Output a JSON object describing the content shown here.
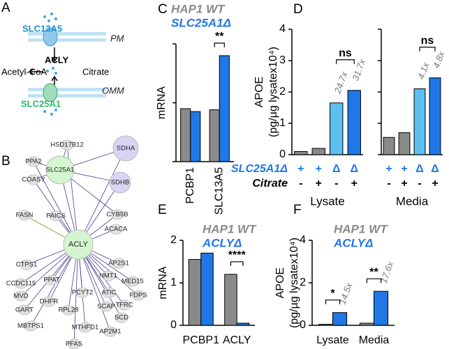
{
  "panel_labels": [
    "A",
    "B",
    "C",
    "D",
    "E",
    "F"
  ],
  "diagram": {
    "labels": [
      "SLC13A5",
      "PM",
      "ACLY",
      "Acetyl-CoA",
      "Citrate",
      "OMM",
      "SLC25A1"
    ]
  },
  "network": {
    "nodes": [
      "ACLY",
      "SLC25A1",
      "SDHA",
      "SDHB",
      "HSD17B12",
      "PPA2",
      "COASY",
      "CYB5B",
      "FASN",
      "PAICS",
      "ACACA",
      "CTPS1",
      "AP2S1",
      "CCDC115",
      "PPAT",
      "NMT1",
      "MED15",
      "MVD",
      "PCYT2",
      "ATIC",
      "TFRC",
      "FDPS",
      "DHFR",
      "SCAP",
      "GART",
      "RPL28",
      "SCD",
      "MBTPS1",
      "MTHFD1",
      "AP2M1",
      "PFAS"
    ]
  },
  "chart_data": [
    {
      "type": "bar",
      "ylabel": [
        "mRNA"
      ],
      "categories": [
        "PCBP1",
        "SLC13A5"
      ],
      "ylim": [
        0,
        2
      ],
      "yticks": [
        0,
        1,
        2
      ],
      "tick_labels": false,
      "series": [
        {
          "name": "HAP1 WT",
          "color": "#8a8a8a",
          "values": [
            0.9,
            0.88
          ]
        },
        {
          "name": "SLC25A1Δ",
          "color": "#1f78e6",
          "values": [
            0.85,
            1.8
          ]
        }
      ],
      "annotations": [
        "**"
      ]
    },
    {
      "type": "grouped_bar",
      "ylabel": [
        "APOE",
        "(pg/µg lysatex10⁴)"
      ],
      "ylim": [
        0,
        4
      ],
      "yticks": [
        0,
        1,
        2,
        3,
        4
      ],
      "bar_colors": [
        "#8a8a8a",
        "#8a8a8a",
        "#5cc0f0",
        "#1f78e6"
      ],
      "groups": [
        {
          "name": "Lysate",
          "values": [
            0.1,
            0.2,
            1.65,
            2.05
          ],
          "fold_labels": [
            null,
            null,
            "24.7x",
            "31.7x"
          ]
        },
        {
          "name": "Media",
          "values": [
            0.55,
            0.7,
            2.1,
            2.45
          ],
          "fold_labels": [
            null,
            null,
            "4.1x",
            "4.8x"
          ]
        }
      ],
      "annotations": [
        "ns",
        "ns"
      ],
      "rows": [
        {
          "name": "SLC25A1Δ",
          "color": "#1f78e6",
          "marks": [
            "+",
            "+",
            "Δ",
            "Δ"
          ]
        },
        {
          "name": "Citrate",
          "color": "#000000",
          "marks": [
            "-",
            "+",
            "-",
            "+"
          ]
        }
      ]
    },
    {
      "type": "bar",
      "ylabel": [
        "mRNA"
      ],
      "categories": [
        "PCBP1",
        "ACLY"
      ],
      "ylim": [
        0,
        2
      ],
      "yticks": [
        0,
        1,
        2
      ],
      "tick_labels": true,
      "series": [
        {
          "name": "HAP1 WT",
          "color": "#8a8a8a",
          "values": [
            1.55,
            1.2
          ]
        },
        {
          "name": "ACLYΔ",
          "color": "#1f78e6",
          "values": [
            1.7,
            0.05
          ]
        }
      ],
      "annotations": [
        "****"
      ]
    },
    {
      "type": "bar",
      "ylabel": [
        "APOE",
        "(pg/µg lysatex10⁴)"
      ],
      "categories": [
        "Lysate",
        "Media"
      ],
      "ylim": [
        0,
        4
      ],
      "yticks": [
        0,
        2,
        4
      ],
      "tick_labels": true,
      "series": [
        {
          "name": "HAP1 WT",
          "color": "#8a8a8a",
          "values": [
            0.05,
            0.1
          ]
        },
        {
          "name": "ACLYΔ",
          "color": "#1f78e6",
          "values": [
            0.6,
            1.6
          ],
          "fold_labels": [
            "14.5x",
            "17.6x"
          ]
        }
      ],
      "annotations": [
        "*",
        "**"
      ]
    }
  ]
}
